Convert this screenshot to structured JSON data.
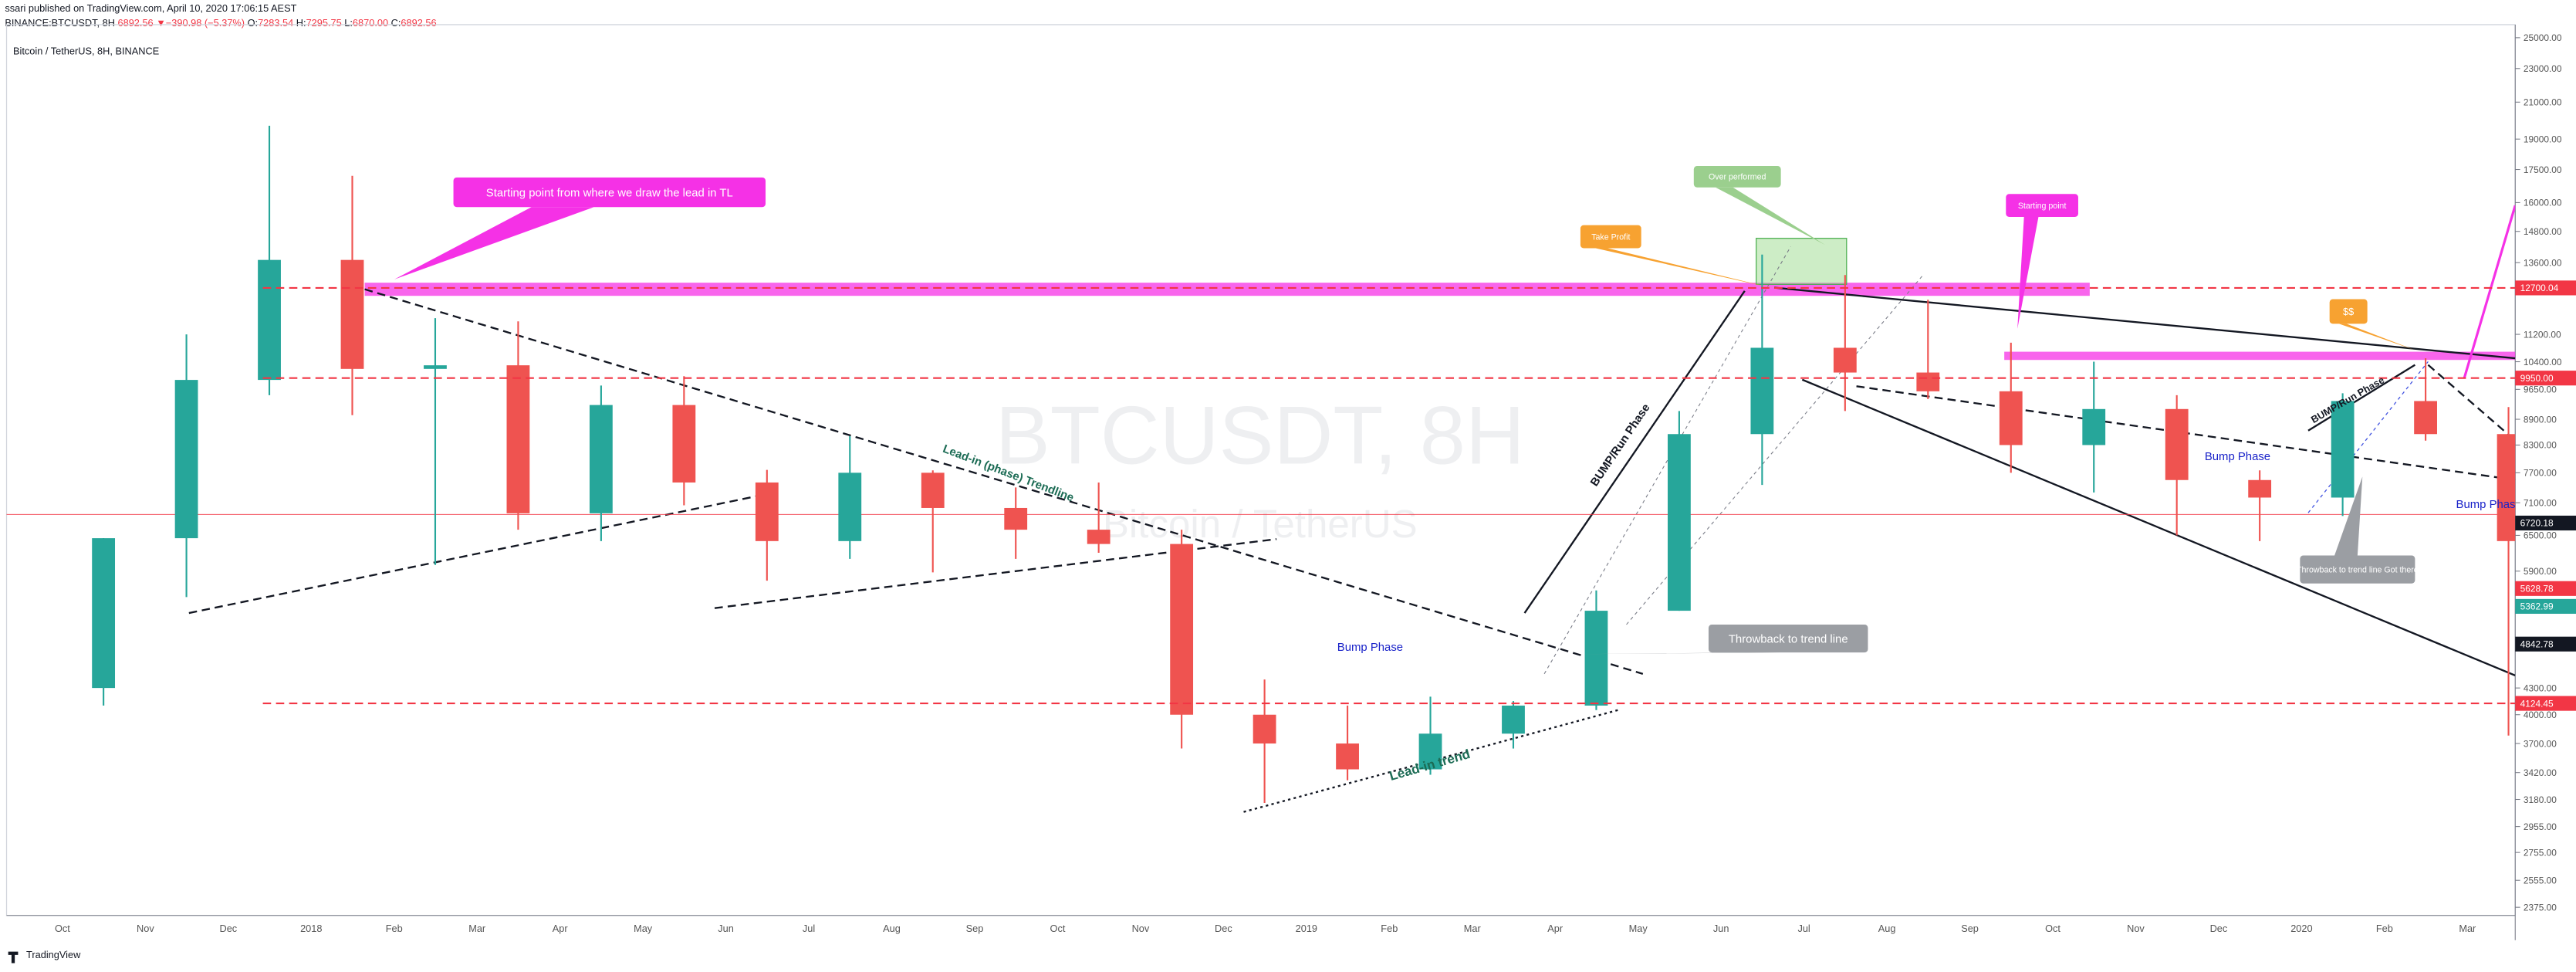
{
  "header": {
    "author_line": "ssari published on TradingView.com, April 10, 2020 17:06:15 AEST",
    "symbol": "BINANCE:BTCUSDT, 8H",
    "last": "6892.56",
    "change": "▼−390.98 (−5.37%)",
    "ohlc": [
      {
        "label": "O:",
        "value": "7283.54"
      },
      {
        "label": "H:",
        "value": "7295.75"
      },
      {
        "label": "L:",
        "value": "6870.00"
      },
      {
        "label": "C:",
        "value": "6892.56"
      }
    ]
  },
  "watermark": {
    "symbol": "BTCUSDT, 8H",
    "description": "Bitcoin / TetherUS"
  },
  "footer": {
    "brand": "TradingView"
  },
  "chart_data": {
    "type": "candlestick",
    "title": "Bitcoin / TetherUS, 8H, BINANCE",
    "categories": [
      "Oct",
      "Nov",
      "Dec",
      "2018",
      "Feb",
      "Mar",
      "Apr",
      "May",
      "Jun",
      "Jul",
      "Aug",
      "Sep",
      "Oct",
      "Nov",
      "Dec",
      "2019",
      "Feb",
      "Mar",
      "Apr",
      "May",
      "Jun",
      "Jul",
      "Aug",
      "Sep",
      "Oct",
      "Nov",
      "Dec",
      "2020",
      "Feb",
      "Mar"
    ],
    "open": [
      4300,
      6450,
      9900,
      13700,
      10200,
      10300,
      6900,
      9250,
      7500,
      6400,
      7700,
      7000,
      6600,
      6350,
      4000,
      3700,
      3450,
      3800,
      4100,
      5300,
      8550,
      10800,
      10100,
      9600,
      8300,
      9150,
      7550,
      7200,
      9350,
      8550
    ],
    "high": [
      6450,
      11200,
      19700,
      17200,
      11700,
      11600,
      9750,
      10000,
      7760,
      8500,
      7750,
      7400,
      7500,
      6600,
      4400,
      4100,
      4200,
      4150,
      5600,
      9100,
      13900,
      13150,
      12300,
      10950,
      10400,
      9500,
      7750,
      9550,
      10500,
      9200
    ],
    "low": [
      4100,
      5500,
      9500,
      9000,
      6000,
      6600,
      6400,
      7050,
      5750,
      6100,
      5880,
      6100,
      6200,
      3650,
      3150,
      3350,
      3400,
      3650,
      4050,
      5300,
      7450,
      9100,
      9400,
      7700,
      7300,
      6500,
      6400,
      6850,
      8400,
      3780
    ],
    "close": [
      6450,
      9900,
      13700,
      10200,
      10300,
      6900,
      9250,
      7500,
      6400,
      7700,
      7000,
      6600,
      6350,
      4000,
      3700,
      3450,
      3800,
      4100,
      5300,
      8550,
      10800,
      10100,
      9600,
      8300,
      9150,
      7550,
      7200,
      9350,
      8550,
      6400
    ],
    "up_color": "#26a69a",
    "down_color": "#ef5350",
    "log_scale": true,
    "ylim": [
      2323,
      25900
    ],
    "yticks": [
      {
        "value": 25000,
        "label": "25000.00"
      },
      {
        "value": 23000,
        "label": "23000.00"
      },
      {
        "value": 21000,
        "label": "21000.00"
      },
      {
        "value": 19000,
        "label": "19000.00"
      },
      {
        "value": 17500,
        "label": "17500.00"
      },
      {
        "value": 16000,
        "label": "16000.00"
      },
      {
        "value": 14800,
        "label": "14800.00"
      },
      {
        "value": 13600,
        "label": "13600.00"
      },
      {
        "value": 11200,
        "label": "11200.00"
      },
      {
        "value": 10400,
        "label": "10400.00"
      },
      {
        "value": 9650,
        "label": "9650.00"
      },
      {
        "value": 8900,
        "label": "8900.00"
      },
      {
        "value": 8300,
        "label": "8300.00"
      },
      {
        "value": 7700,
        "label": "7700.00"
      },
      {
        "value": 7100,
        "label": "7100.00"
      },
      {
        "value": 6500,
        "label": "6500.00"
      },
      {
        "value": 5900,
        "label": "5900.00"
      },
      {
        "value": 4300,
        "label": "4300.00"
      },
      {
        "value": 4000,
        "label": "4000.00"
      },
      {
        "value": 3700,
        "label": "3700.00"
      },
      {
        "value": 3420,
        "label": "3420.00"
      },
      {
        "value": 3180,
        "label": "3180.00"
      },
      {
        "value": 2955,
        "label": "2955.00"
      },
      {
        "value": 2755,
        "label": "2755.00"
      },
      {
        "value": 2555,
        "label": "2555.00"
      },
      {
        "value": 2375,
        "label": "2375.00"
      }
    ],
    "price_lines": [
      {
        "value": 12700.04,
        "color": "#f23645",
        "dashed": true
      },
      {
        "value": {
          "value": 9950,
          "label": "9950.00"
        },
        "color": "#f23645",
        "dashed": true
      },
      {
        "value": 6720.18,
        "color": "#131722",
        "dashed": false
      },
      {
        "value": 5628.78,
        "color": "#f23645",
        "dashed": false
      },
      {
        "value": 5362.99,
        "color": "#26a69a",
        "dashed": false
      },
      {
        "value": 4842.78,
        "color": "#131722",
        "dashed": false
      },
      {
        "value": 4124.45,
        "color": "#f23645",
        "dashed": true
      }
    ],
    "annotations": [
      {
        "text": "Starting point from where we draw the lead in TL",
        "color": "#f531e6"
      },
      {
        "text": "Lead-in (phase) Trendline",
        "color": "#1b6b54"
      },
      {
        "text": "Bump Phase",
        "color": "#1a23c9"
      },
      {
        "text": "Throwback to trend line",
        "color": "#9b9ea3"
      },
      {
        "text": "Lead-in trend",
        "color": "#1b6b54"
      },
      {
        "text": "BUMP/Run Phase",
        "color": "#131722"
      },
      {
        "text": "Take Profit",
        "color": "#f7a231"
      },
      {
        "text": "Over performed",
        "color": "#9bcf8e"
      },
      {
        "text": "Starting point",
        "color": "#f531e6"
      },
      {
        "text": "$$",
        "color": "#f7a231"
      },
      {
        "text": "Bump Phase",
        "color": "#1a23c9"
      },
      {
        "text": "BUMP/Run Phase",
        "color": "#131722"
      },
      {
        "text": "Bump Phase",
        "color": "#1a23c9"
      },
      {
        "text": "Throwback to trend line Got there",
        "color": "#9b9ea3"
      }
    ]
  }
}
